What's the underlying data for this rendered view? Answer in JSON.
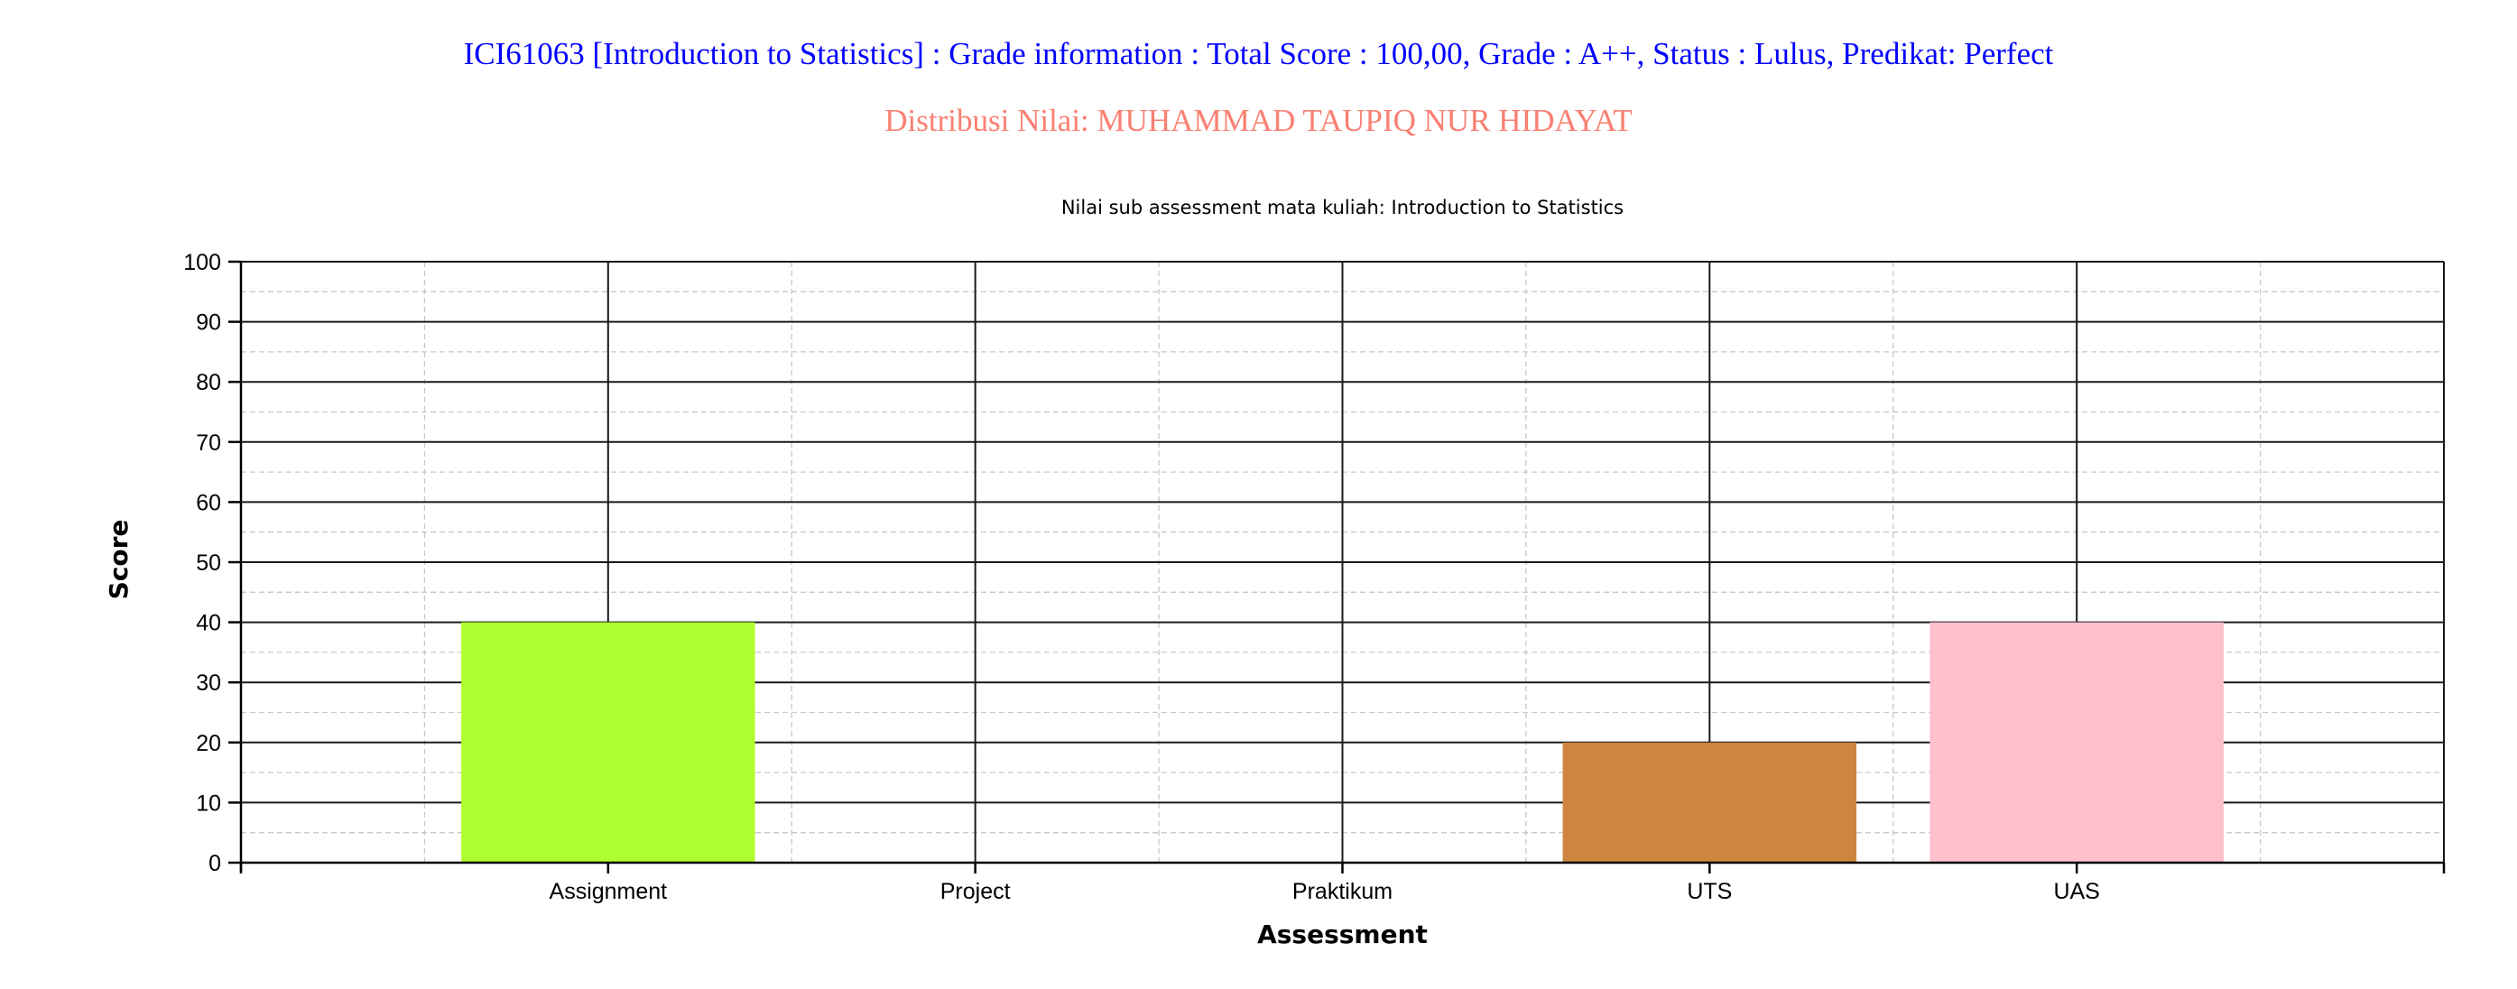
{
  "header": {
    "title": "ICI61063 [Introduction to Statistics] : Grade information : Total Score : 100,00, Grade : A++, Status : Lulus, Predikat: Perfect",
    "subtitle": "Distribusi Nilai: MUHAMMAD TAUPIQ NUR HIDAYAT"
  },
  "colors": {
    "title": "#0000ff",
    "subtitle": "#fa8072"
  },
  "chart_data": {
    "type": "bar",
    "title": "Nilai sub assessment mata kuliah: Introduction to Statistics",
    "xlabel": "Assessment",
    "ylabel": "Score",
    "categories": [
      "Assignment",
      "Project",
      "Praktikum",
      "UTS",
      "UAS"
    ],
    "values": [
      40,
      0,
      0,
      20,
      40
    ],
    "bar_colors": [
      "#adff2f",
      "#adff2f",
      "#adff2f",
      "#cd853f",
      "#ffc0cb"
    ],
    "ylim": [
      0,
      100
    ],
    "yticks": [
      0,
      10,
      20,
      30,
      40,
      50,
      60,
      70,
      80,
      90,
      100
    ],
    "grid": true,
    "legend": "none"
  }
}
